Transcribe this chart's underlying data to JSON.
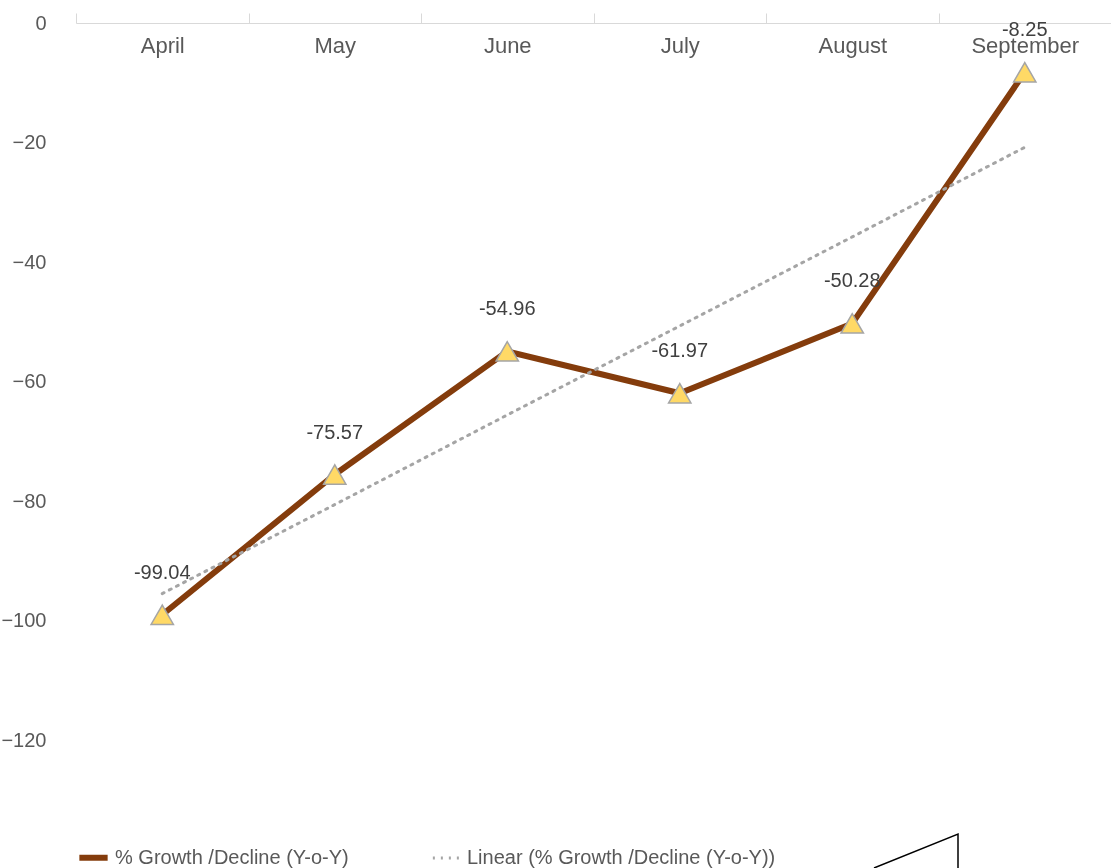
{
  "chart_data": {
    "type": "line",
    "categories": [
      "April",
      "May",
      "June",
      "July",
      "August",
      "September"
    ],
    "series": [
      {
        "name": "% Growth /Decline    (Y-o-Y)",
        "color": "#843c0c",
        "values": [
          -99.04,
          -75.57,
          -54.96,
          -61.97,
          -50.28,
          -8.25
        ],
        "value_labels": [
          "-99.04",
          "-75.57",
          "-54.96",
          "-61.97",
          "-50.28",
          "-8.25"
        ],
        "marker": "triangle",
        "line_style": "solid"
      },
      {
        "name": "Linear (% Growth /Decline    (Y-o-Y))",
        "color": "#a5a5a5",
        "type": "line",
        "values": [
          -95.5,
          -80.6,
          -65.6,
          -50.7,
          -35.8,
          -20.8
        ],
        "marker": "none",
        "line_style": "dotted"
      }
    ],
    "ylim": [
      -120,
      0
    ],
    "yticks": [
      0,
      -20,
      -40,
      -60,
      -80,
      -100,
      -120
    ],
    "grid": false,
    "legend": "bottom"
  }
}
